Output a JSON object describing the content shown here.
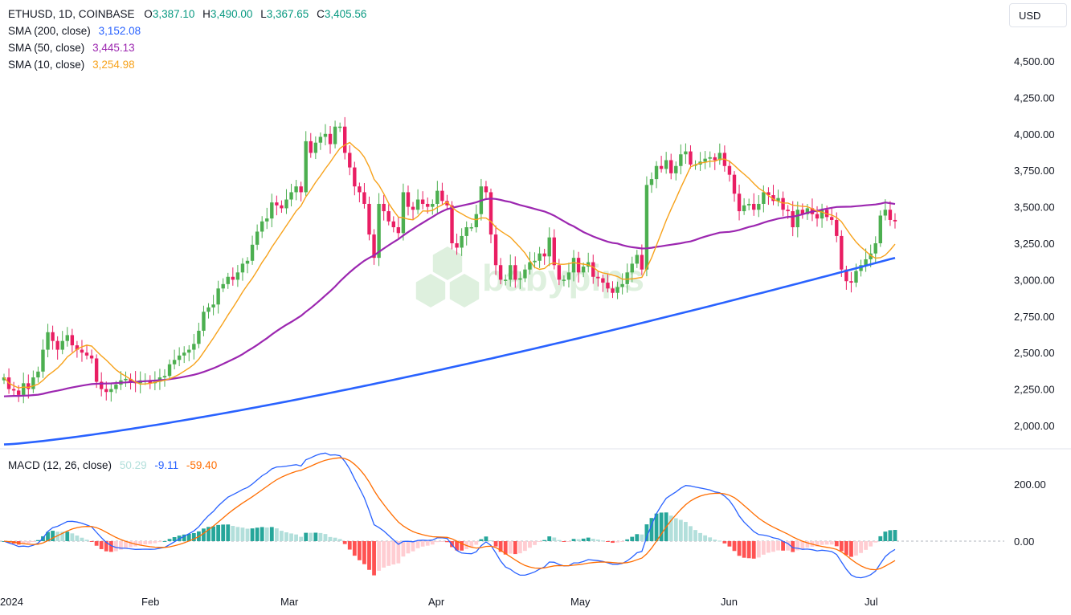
{
  "header": {
    "symbol": "ETHUSD, 1D, COINBASE",
    "o_label": "O",
    "o_value": "3,387.10",
    "h_label": "H",
    "h_value": "3,490.00",
    "l_label": "L",
    "l_value": "3,367.65",
    "c_label": "C",
    "c_value": "3,405.56",
    "ohlc_color": "#4caf50"
  },
  "indicators": [
    {
      "label": "SMA (200, close)",
      "value": "3,152.08",
      "color": "#2962ff"
    },
    {
      "label": "SMA (50, close)",
      "value": "3,445.13",
      "color": "#9c27b0"
    },
    {
      "label": "SMA (10, close)",
      "value": "3,254.98",
      "color": "#f7a21b"
    }
  ],
  "currency_button": "USD",
  "macd_legend": {
    "label": "MACD (12, 26, close)",
    "hist": "50.29",
    "hist_color": "#b2dfdb",
    "macd": "-9.11",
    "macd_color": "#2962ff",
    "signal": "-59.40",
    "signal_color": "#ff6d00"
  },
  "watermark": "babypips",
  "chart_data": {
    "type": "candlestick",
    "price_axis": {
      "ticks": [
        "4,500.00",
        "4,250.00",
        "4,000.00",
        "3,750.00",
        "3,500.00",
        "3,250.00",
        "3,000.00",
        "2,750.00",
        "2,500.00",
        "2,250.00",
        "2,000.00"
      ],
      "ylim": [
        1900,
        4700
      ]
    },
    "macd_axis": {
      "ticks": [
        "200.00",
        "0.00"
      ],
      "ylim": [
        -250,
        330
      ]
    },
    "x_labels": [
      "2024",
      "Feb",
      "Mar",
      "Apr",
      "May",
      "Jun",
      "Jul"
    ],
    "colors": {
      "up": "#4caf50",
      "down": "#e91e63",
      "sma200": "#2962ff",
      "sma50": "#9c27b0",
      "sma10": "#f7a21b",
      "macd": "#2962ff",
      "signal": "#ff6d00",
      "hist_up_strong": "#26a69a",
      "hist_up_weak": "#b2dfdb",
      "hist_down_strong": "#ff5252",
      "hist_down_weak": "#ffcdd2"
    },
    "close": [
      2330,
      2250,
      2240,
      2210,
      2290,
      2250,
      2330,
      2370,
      2520,
      2640,
      2580,
      2520,
      2580,
      2620,
      2550,
      2520,
      2500,
      2480,
      2460,
      2300,
      2250,
      2230,
      2250,
      2280,
      2310,
      2320,
      2300,
      2290,
      2310,
      2310,
      2290,
      2300,
      2330,
      2340,
      2420,
      2450,
      2480,
      2500,
      2520,
      2560,
      2650,
      2780,
      2810,
      2830,
      2940,
      2970,
      3020,
      3000,
      3050,
      3110,
      3130,
      3240,
      3330,
      3400,
      3420,
      3530,
      3510,
      3490,
      3550,
      3600,
      3640,
      3600,
      3950,
      3870,
      3940,
      3980,
      4000,
      3930,
      4050,
      4050,
      3870,
      3770,
      3640,
      3600,
      3520,
      3310,
      3150,
      3520,
      3470,
      3400,
      3360,
      3320,
      3600,
      3500,
      3480,
      3550,
      3520,
      3500,
      3520,
      3610,
      3540,
      3510,
      3250,
      3220,
      3300,
      3360,
      3360,
      3450,
      3640,
      3600,
      3310,
      3100,
      3000,
      3000,
      3100,
      3000,
      3010,
      3070,
      3120,
      3130,
      3180,
      3160,
      3290,
      3100,
      3000,
      3000,
      3050,
      3150,
      3050,
      3090,
      3120,
      3020,
      3010,
      2980,
      2940,
      2910,
      2950,
      2970,
      3050,
      3110,
      3170,
      3070,
      3650,
      3690,
      3780,
      3760,
      3820,
      3730,
      3780,
      3860,
      3880,
      3790,
      3790,
      3810,
      3830,
      3840,
      3820,
      3870,
      3780,
      3720,
      3590,
      3470,
      3510,
      3520,
      3480,
      3520,
      3600,
      3580,
      3540,
      3560,
      3480,
      3470,
      3360,
      3480,
      3450,
      3490,
      3450,
      3420,
      3480,
      3430,
      3410,
      3300,
      3070,
      2990,
      2980,
      3060,
      3100,
      3140,
      3180,
      3250,
      3440,
      3480,
      3410,
      3400
    ]
  }
}
